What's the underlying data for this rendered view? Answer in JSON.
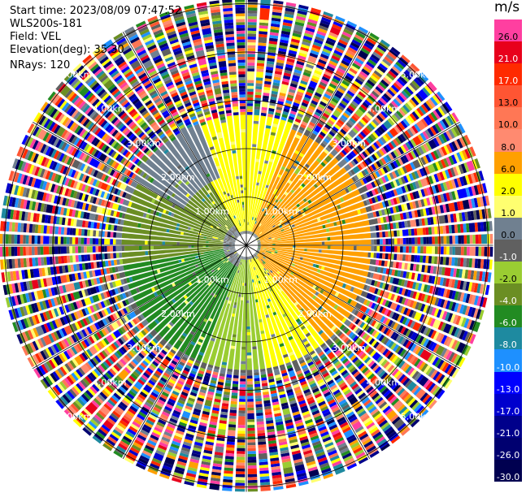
{
  "header": {
    "start_time": "Start time: 2023/08/09 07:47:52",
    "site": "WLS200s-181",
    "field": "Field: VEL",
    "elevation": "Elevation(deg): 35.30",
    "nrays": "NRays: 120"
  },
  "colorbar": {
    "unit": "m/s",
    "segments": [
      {
        "label": "26.0",
        "color": "#ff3fa0"
      },
      {
        "label": "21.0",
        "color": "#e8001c"
      },
      {
        "label": "17.0",
        "color": "#ff2a00"
      },
      {
        "label": "13.0",
        "color": "#ff5533"
      },
      {
        "label": "10.0",
        "color": "#ff7755"
      },
      {
        "label": "8.0",
        "color": "#ff8a70"
      },
      {
        "label": "6.0",
        "color": "#ffa000"
      },
      {
        "label": "2.0",
        "color": "#ffff00"
      },
      {
        "label": "1.0",
        "color": "#ffff70"
      },
      {
        "label": "0.0",
        "color": "#708090"
      },
      {
        "label": "-1.0",
        "color": "#606060"
      },
      {
        "label": "-2.0",
        "color": "#9acd32"
      },
      {
        "label": "-4.0",
        "color": "#6b8e23"
      },
      {
        "label": "-6.0",
        "color": "#228b22"
      },
      {
        "label": "-8.0",
        "color": "#1e8aa0"
      },
      {
        "label": "-10.0",
        "color": "#1e90ff"
      },
      {
        "label": "-13.0",
        "color": "#0000ff"
      },
      {
        "label": "-17.0",
        "color": "#0000cd"
      },
      {
        "label": "-21.0",
        "color": "#00008b"
      },
      {
        "label": "-26.0",
        "color": "#000070"
      },
      {
        "label": "-30.0",
        "color": "#000050"
      }
    ]
  },
  "chart_data": {
    "type": "heatmap",
    "projection": "polar PPI",
    "field": "VEL",
    "nrays": 120,
    "range_rings_km": [
      "1.00km",
      "2.00km",
      "3.00km",
      "4.00km",
      "5.00km"
    ],
    "colorbar_ticks": [
      26.0,
      21.0,
      17.0,
      13.0,
      10.0,
      8.0,
      6.0,
      2.0,
      1.0,
      0.0,
      -1.0,
      -2.0,
      -4.0,
      -6.0,
      -8.0,
      -10.0,
      -13.0,
      -17.0,
      -21.0,
      -26.0,
      -30.0
    ],
    "sectors": [
      {
        "azimuth_deg": [
          20,
          140
        ],
        "range_km": [
          0.3,
          2.6
        ],
        "velocity_ms": 6.0
      },
      {
        "azimuth_deg": [
          330,
          20
        ],
        "range_km": [
          0.3,
          2.7
        ],
        "velocity_ms": 2.0
      },
      {
        "azimuth_deg": [
          140,
          170
        ],
        "range_km": [
          0.3,
          2.6
        ],
        "velocity_ms": 2.0
      },
      {
        "azimuth_deg": [
          170,
          200
        ],
        "range_km": [
          0.3,
          2.6
        ],
        "velocity_ms": -2.0
      },
      {
        "azimuth_deg": [
          200,
          260
        ],
        "range_km": [
          0.5,
          2.6
        ],
        "velocity_ms": -6.0
      },
      {
        "azimuth_deg": [
          260,
          330
        ],
        "range_km": [
          0.5,
          2.6
        ],
        "velocity_ms": -4.0
      },
      {
        "azimuth_deg": [
          300,
          340
        ],
        "range_km": [
          1.5,
          2.7
        ],
        "velocity_ms": 0.0
      }
    ],
    "noise_beyond_km": 2.7
  }
}
